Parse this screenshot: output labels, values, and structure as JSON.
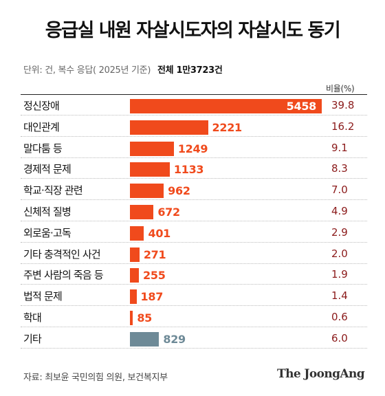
{
  "title": "응급실 내원 자살시도자의 자살시도 동기",
  "subtitle": {
    "unit_note": "단위: 건, 복수 응답( 2025년 기준)",
    "total": "전체 1만3723건"
  },
  "ratio_header": "비율(%)",
  "source": "자료: 최보윤 국민의힘 의원, 보건복지부",
  "logo": "The JoongAng",
  "colors": {
    "bar_main": "#f04a1c",
    "bar_other": "#6e8a97",
    "ratio_text": "#8b1a1a"
  },
  "chart_data": {
    "type": "bar",
    "orientation": "horizontal",
    "title": "응급실 내원 자살시도자의 자살시도 동기",
    "categories": [
      "정신장애",
      "대인관계",
      "말다툼 등",
      "경제적 문제",
      "학교·직장 관련",
      "신체적 질병",
      "외로움·고독",
      "기타 충격적인 사건",
      "주변 사람의 죽음 등",
      "법적 문제",
      "학대",
      "기타"
    ],
    "series": [
      {
        "name": "",
        "values": [
          5458,
          2221,
          1249,
          1133,
          962,
          672,
          401,
          271,
          255,
          187,
          85,
          829
        ]
      }
    ],
    "value_labels": [
      "5458",
      "2221",
      "1249",
      "1133",
      "962",
      "672",
      "401",
      "271",
      "255",
      "187",
      "85",
      "829"
    ],
    "ratio_labels": [
      "39.8",
      "16.2",
      "9.1",
      "8.3",
      "7.0",
      "4.9",
      "2.9",
      "2.0",
      "1.9",
      "1.4",
      "0.6",
      "6.0"
    ],
    "highlight_last": true,
    "grid": false
  }
}
